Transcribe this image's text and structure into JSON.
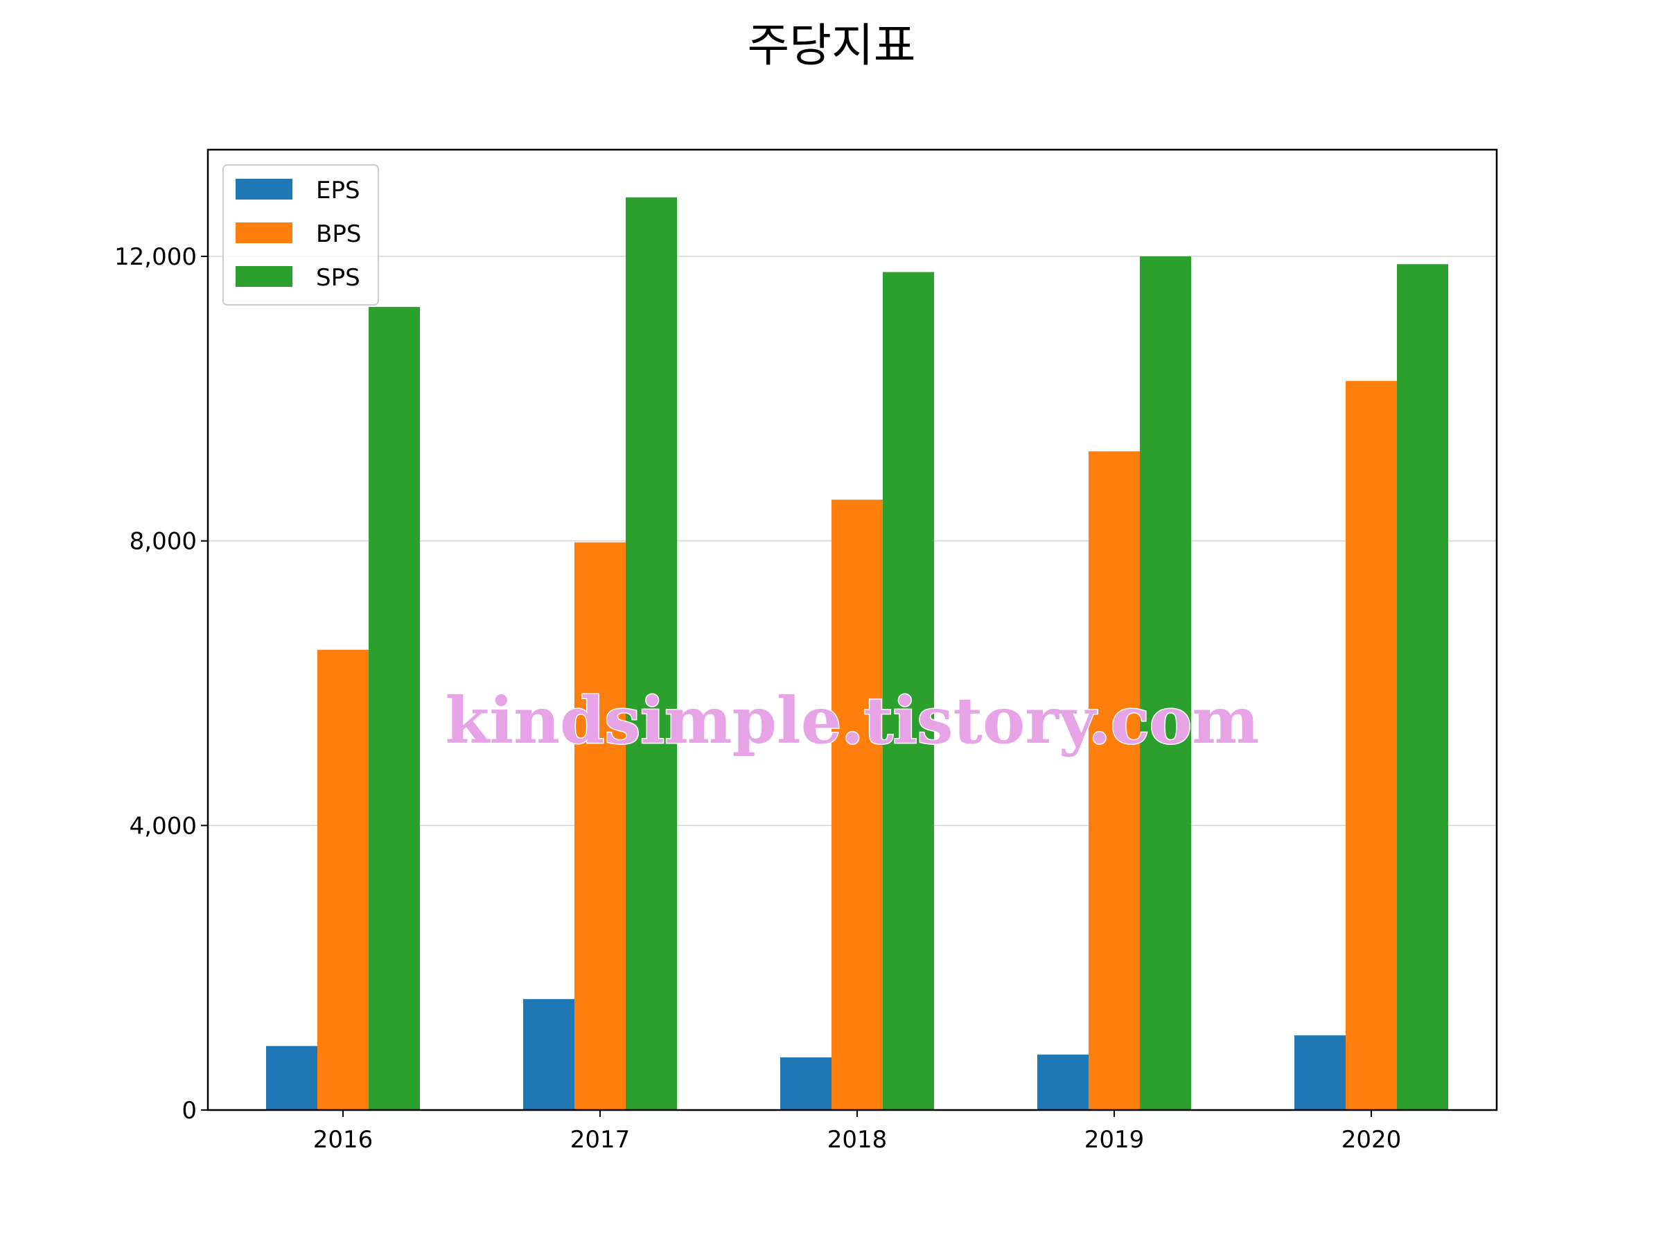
{
  "chart_data": {
    "type": "bar",
    "title": "주당지표",
    "xlabel": "",
    "ylabel": "",
    "categories": [
      "2016",
      "2017",
      "2018",
      "2019",
      "2020"
    ],
    "series": [
      {
        "name": "EPS",
        "color": "#1f77b4",
        "values": [
          900,
          1560,
          740,
          780,
          1050
        ]
      },
      {
        "name": "BPS",
        "color": "#ff7f0e",
        "values": [
          6470,
          7980,
          8580,
          9260,
          10250
        ]
      },
      {
        "name": "SPS",
        "color": "#2ca02c",
        "values": [
          11290,
          12830,
          11780,
          12000,
          11890
        ]
      }
    ],
    "ylim": [
      0,
      13500
    ],
    "yticks": [
      0,
      4000,
      8000,
      12000
    ],
    "ytick_labels": [
      "0",
      "4,000",
      "8,000",
      "12,000"
    ],
    "grid": "horizontal",
    "legend_position": "top-left",
    "watermark": "kindsimple.tistory.com"
  }
}
